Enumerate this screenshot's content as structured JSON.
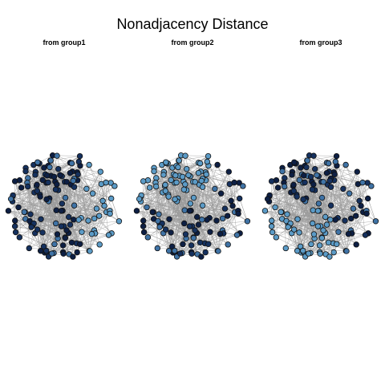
{
  "title": "Nonadjacency Distance",
  "panels": [
    {
      "title": "from group1",
      "highlight_group": 0
    },
    {
      "title": "from group2",
      "highlight_group": 1
    },
    {
      "title": "from group3",
      "highlight_group": 2
    }
  ],
  "colors": {
    "edge": "#9a9a9a",
    "node_outline": "#111111",
    "near": "#5b9bc7",
    "mid": "#3f73a6",
    "far": "#15315f",
    "farthest": "#0d1f44"
  },
  "network": {
    "node_count_per_panel": 150,
    "group_count": 3
  }
}
